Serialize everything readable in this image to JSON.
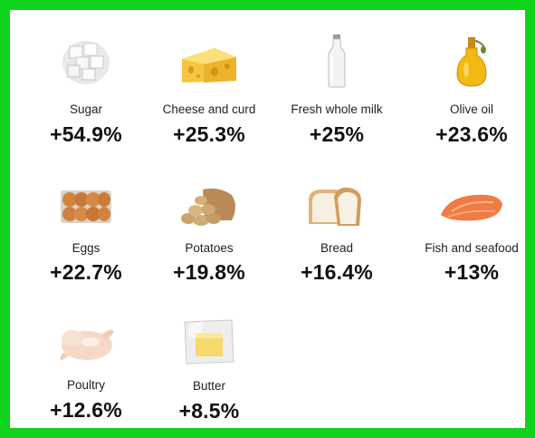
{
  "items": [
    {
      "name": "Sugar",
      "change": "+54.9%",
      "icon": "sugar-cubes-icon"
    },
    {
      "name": "Cheese and curd",
      "change": "+25.3%",
      "icon": "cheese-icon"
    },
    {
      "name": "Fresh whole milk",
      "change": "+25%",
      "icon": "milk-bottle-icon"
    },
    {
      "name": "Olive oil",
      "change": "+23.6%",
      "icon": "olive-oil-icon"
    },
    {
      "name": "Eggs",
      "change": "+22.7%",
      "icon": "eggs-icon"
    },
    {
      "name": "Potatoes",
      "change": "+19.8%",
      "icon": "potatoes-icon"
    },
    {
      "name": "Bread",
      "change": "+16.4%",
      "icon": "bread-icon"
    },
    {
      "name": "Fish and seafood",
      "change": "+13%",
      "icon": "fish-icon"
    },
    {
      "name": "Poultry",
      "change": "+12.6%",
      "icon": "poultry-icon"
    },
    {
      "name": "Butter",
      "change": "+8.5%",
      "icon": "butter-icon"
    }
  ],
  "colors": {
    "border": "#0fd31b",
    "background": "#ffffff",
    "text": "#111111"
  }
}
